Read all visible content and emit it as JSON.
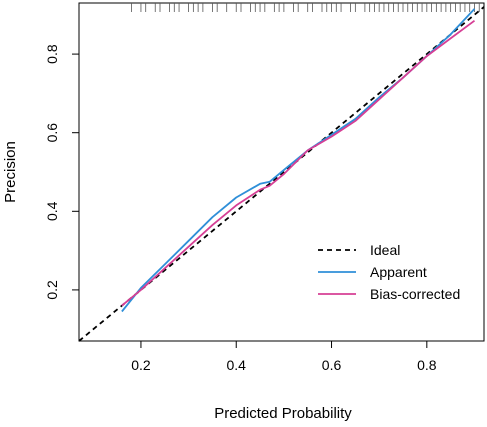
{
  "chart_data": {
    "type": "line",
    "title": "",
    "xlabel": "Predicted Probability",
    "ylabel": "Precision",
    "xlim": [
      0.07,
      0.92
    ],
    "ylim": [
      0.07,
      0.93
    ],
    "x_ticks": [
      "0.2",
      "0.4",
      "0.6",
      "0.8"
    ],
    "y_ticks": [
      "0.2",
      "0.4",
      "0.6",
      "0.8"
    ],
    "grid": false,
    "legend_position": "bottom-right",
    "rug": {
      "position": "top",
      "x": [
        0.18,
        0.2,
        0.21,
        0.23,
        0.24,
        0.26,
        0.27,
        0.28,
        0.3,
        0.31,
        0.32,
        0.33,
        0.35,
        0.36,
        0.38,
        0.4,
        0.41,
        0.43,
        0.44,
        0.45,
        0.46,
        0.48,
        0.49,
        0.5,
        0.52,
        0.53,
        0.55,
        0.56,
        0.58,
        0.59,
        0.6,
        0.61,
        0.62,
        0.64,
        0.65,
        0.67,
        0.68,
        0.69,
        0.7,
        0.71,
        0.72,
        0.73,
        0.74,
        0.75,
        0.76,
        0.77,
        0.78,
        0.79,
        0.8,
        0.81,
        0.82,
        0.83,
        0.84,
        0.85,
        0.86,
        0.87,
        0.88,
        0.89,
        0.9,
        0.91
      ]
    },
    "series": [
      {
        "name": "Ideal",
        "color": "#000000",
        "style": "dashed",
        "x": [
          0.07,
          0.92
        ],
        "y": [
          0.07,
          0.92
        ]
      },
      {
        "name": "Apparent",
        "color": "#2f8fd8",
        "style": "solid",
        "x": [
          0.16,
          0.2,
          0.25,
          0.3,
          0.35,
          0.4,
          0.45,
          0.47,
          0.5,
          0.55,
          0.6,
          0.65,
          0.7,
          0.75,
          0.8,
          0.85,
          0.9
        ],
        "y": [
          0.145,
          0.205,
          0.265,
          0.325,
          0.385,
          0.435,
          0.47,
          0.475,
          0.505,
          0.555,
          0.595,
          0.635,
          0.69,
          0.74,
          0.795,
          0.85,
          0.915
        ]
      },
      {
        "name": "Bias-corrected",
        "color": "#d63f95",
        "style": "solid",
        "x": [
          0.16,
          0.2,
          0.25,
          0.3,
          0.35,
          0.4,
          0.45,
          0.47,
          0.5,
          0.55,
          0.6,
          0.65,
          0.7,
          0.75,
          0.8,
          0.85,
          0.9
        ],
        "y": [
          0.16,
          0.2,
          0.255,
          0.31,
          0.365,
          0.415,
          0.455,
          0.465,
          0.495,
          0.555,
          0.59,
          0.63,
          0.685,
          0.74,
          0.795,
          0.84,
          0.885
        ]
      }
    ]
  }
}
